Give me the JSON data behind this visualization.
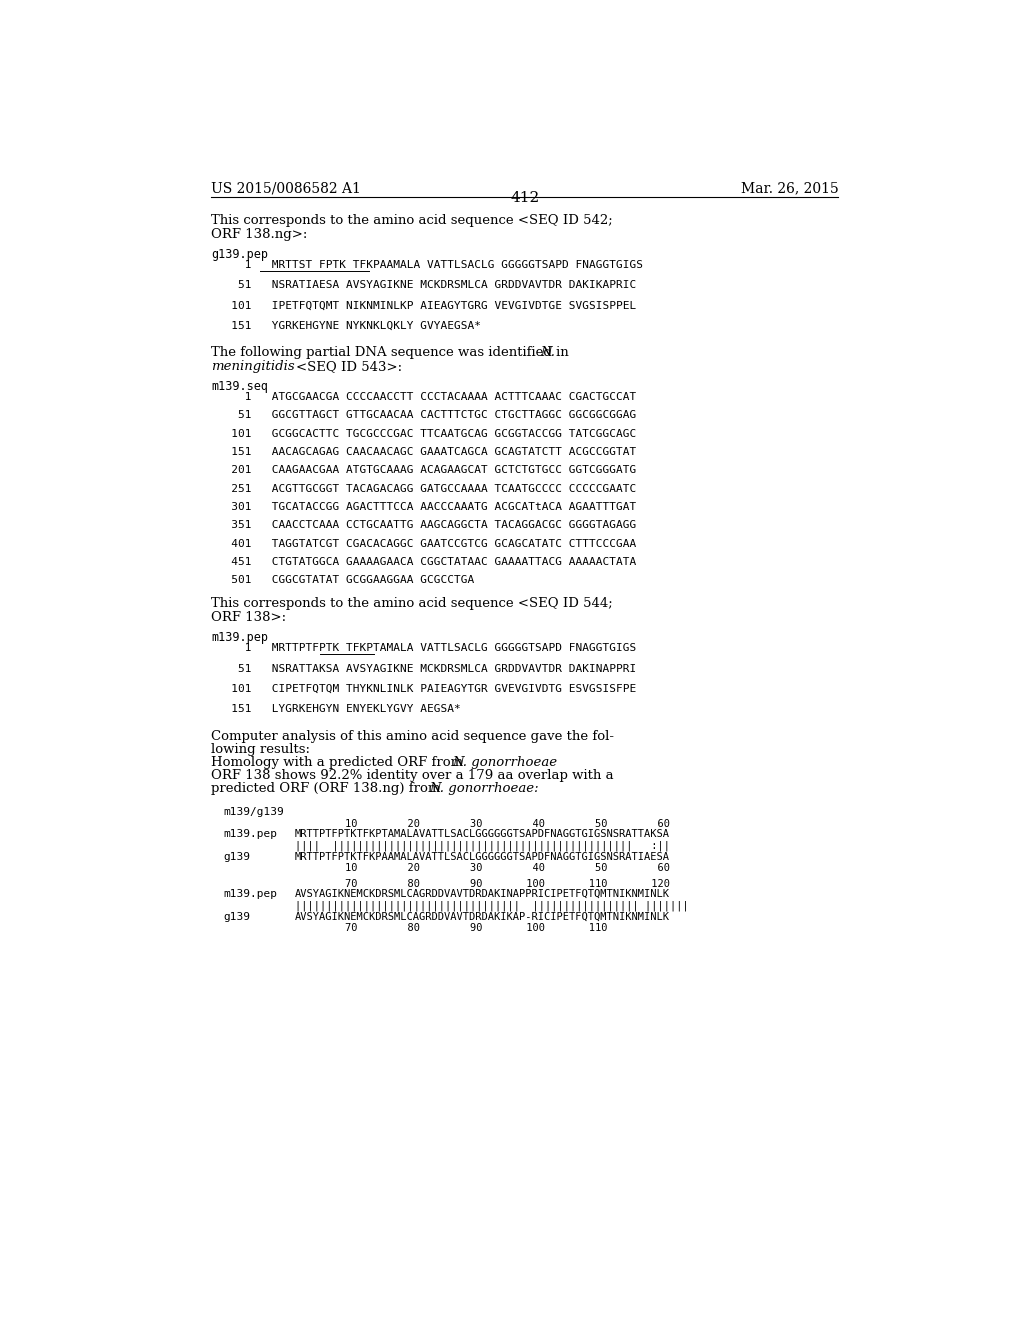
{
  "background_color": "#ffffff",
  "page_number": "412",
  "header_left": "US 2015/0086582 A1",
  "header_right": "Mar. 26, 2015"
}
